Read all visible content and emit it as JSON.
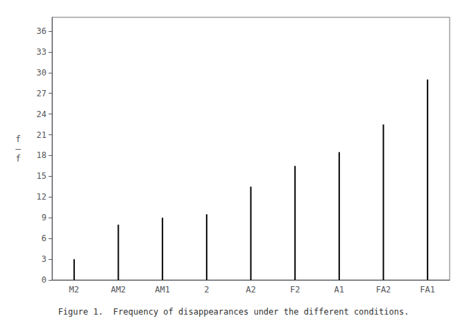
{
  "chart_data": {
    "type": "bar",
    "categories": [
      "M2",
      "AM2",
      "AM1",
      "2",
      "A2",
      "F2",
      "A1",
      "FA2",
      "FA1"
    ],
    "values": [
      3,
      8,
      9,
      9.5,
      13.5,
      16.5,
      18.5,
      22.5,
      29
    ],
    "color": "#000000",
    "ylabel": "f\n—\nf",
    "caption": "Figure 1.  Frequency of disappearances under the different conditions.",
    "ylim": [
      0,
      38
    ],
    "yticks": [
      0,
      3,
      6,
      9,
      12,
      15,
      18,
      21,
      24,
      27,
      30,
      33,
      36
    ],
    "grid": false
  }
}
